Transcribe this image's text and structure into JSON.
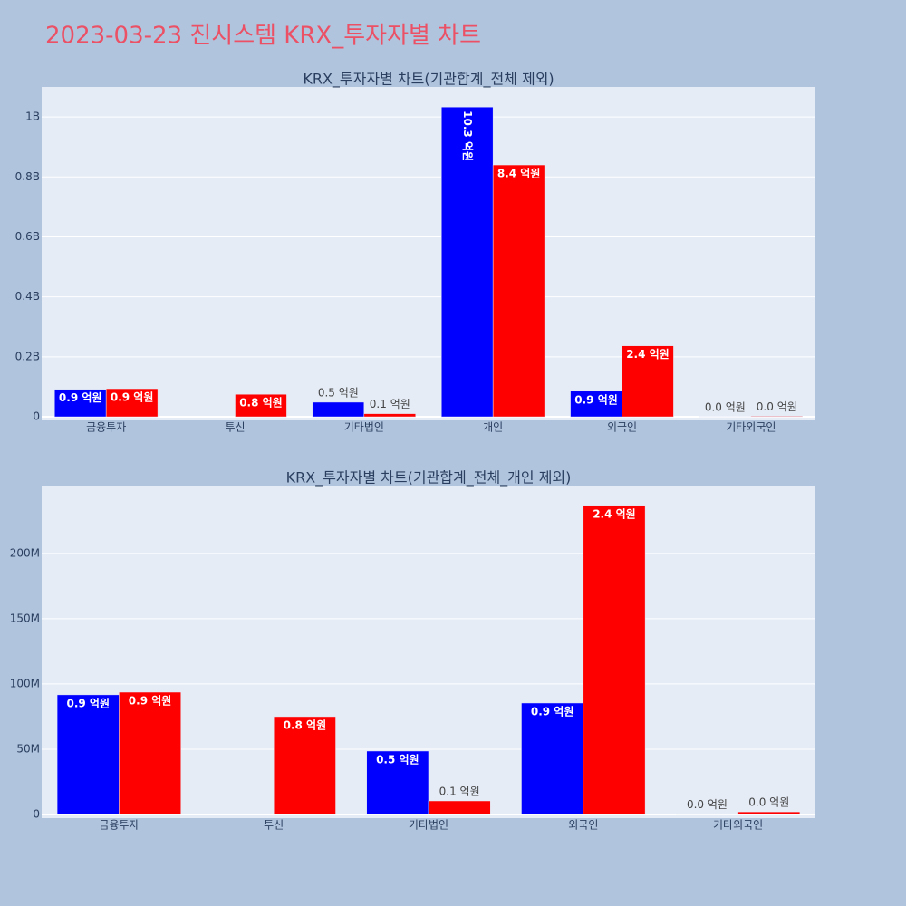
{
  "title": "2023-03-23 진시스템 KRX_투자자별 차트",
  "chart_data": [
    {
      "type": "bar",
      "title": "KRX_투자자별 차트(기관합계_전체 제외)",
      "categories": [
        "금융투자",
        "투신",
        "기타법인",
        "개인",
        "외국인",
        "기타외국인"
      ],
      "series": [
        {
          "color": "#0000ff",
          "values": [
            91700000,
            null,
            48600000,
            1033000000,
            85400000,
            300000
          ],
          "value_labels": [
            "0.9 억원",
            null,
            "0.5 억원",
            "10.3 억원",
            "0.9 억원",
            "0.0 억원"
          ]
        },
        {
          "color": "#ff0000",
          "values": [
            93700000,
            75000000,
            10400000,
            840000000,
            236800000,
            2000000
          ],
          "value_labels": [
            "0.9 억원",
            "0.8 억원",
            "0.1 억원",
            "8.4 억원",
            "2.4 억원",
            "0.0 억원"
          ]
        }
      ],
      "ylim": [
        -12000000,
        1100000000
      ],
      "yticks": [
        0,
        {
          "value": 200000000,
          "label": "0.2B"
        },
        {
          "value": 400000000,
          "label": "0.4B"
        },
        {
          "value": 600000000,
          "label": "0.6B"
        },
        {
          "value": 800000000,
          "label": "0.8B"
        },
        {
          "value": 1000000000,
          "label": "1B"
        }
      ],
      "grid": true
    },
    {
      "type": "bar",
      "title": "KRX_투자자별 차트(기관합계_전체_개인 제외)",
      "categories": [
        "금융투자",
        "투신",
        "기타법인",
        "외국인",
        "기타외국인"
      ],
      "series": [
        {
          "color": "#0000ff",
          "values": [
            91700000,
            null,
            48600000,
            85400000,
            300000
          ],
          "value_labels": [
            "0.9 억원",
            null,
            "0.5 억원",
            "0.9 억원",
            "0.0 억원"
          ]
        },
        {
          "color": "#ff0000",
          "values": [
            93700000,
            75000000,
            10400000,
            236800000,
            2000000
          ],
          "value_labels": [
            "0.9 억원",
            "0.8 억원",
            "0.1 억원",
            "2.4 억원",
            "0.0 억원"
          ]
        }
      ],
      "ylim": [
        -2800000,
        252000000
      ],
      "yticks": [
        0,
        {
          "value": 50000000,
          "label": "50M"
        },
        {
          "value": 100000000,
          "label": "100M"
        },
        {
          "value": 150000000,
          "label": "150M"
        },
        {
          "value": 200000000,
          "label": "200M"
        }
      ],
      "grid": true
    }
  ]
}
